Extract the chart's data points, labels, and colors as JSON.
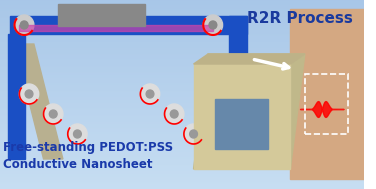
{
  "title_r2r": "R2R Process",
  "title_r2r_color": "#1a3a9e",
  "title_pedot": "Free-standing PEDOT:PSS",
  "title_pedot2": "Conductive Nanosheet",
  "pedot_color": "#1a3aaa",
  "bg_color_top": "#a8c8e8",
  "bg_color_bottom": "#c8dff0",
  "figsize": [
    3.76,
    1.89
  ],
  "dpi": 100
}
